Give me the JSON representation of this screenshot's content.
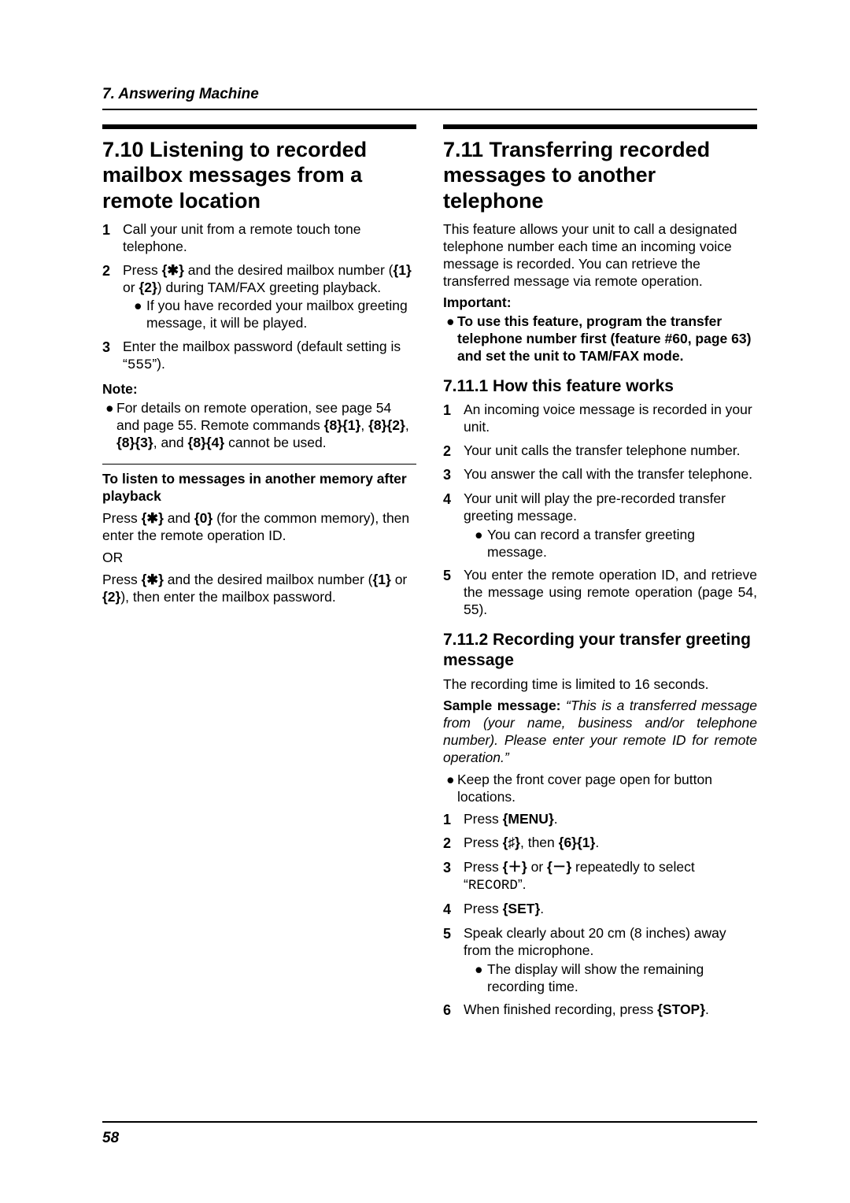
{
  "header": {
    "chapter": "7. Answering Machine"
  },
  "left": {
    "title": "7.10 Listening to recorded mailbox messages from a remote location",
    "steps": [
      {
        "n": "1",
        "t": "Call your unit from a remote touch tone telephone."
      },
      {
        "n": "2",
        "t": "Press {✱} and the desired mailbox number ({1} or {2}) during TAM/FAX greeting playback.",
        "sub": "If you have recorded your mailbox greeting message, it will be played."
      },
      {
        "n": "3",
        "t_pre": "Enter the mailbox password (default setting is “",
        "code": "555",
        "t_post": "”)."
      }
    ],
    "note_label": "Note:",
    "note": "For details on remote operation, see page 54 and page 55. Remote commands {8}{1}, {8}{2}, {8}{3}, and {8}{4} cannot be used.",
    "sub_head": "To listen to messages in another memory after playback",
    "p1": "Press {✱} and {0} (for the common memory), then enter the remote operation ID.",
    "or": "OR",
    "p2": "Press {✱} and the desired mailbox number ({1} or {2}), then enter the mailbox password."
  },
  "right": {
    "title": "7.11 Transferring recorded messages to another telephone",
    "intro": "This feature allows your unit to call a designated telephone number each time an incoming voice message is recorded. You can retrieve the transferred message via remote operation.",
    "imp_label": "Important:",
    "imp": "To use this feature, program the transfer telephone number first (feature #60, page 63) and set the unit to TAM/FAX mode.",
    "s1": {
      "title": "7.11.1 How this feature works",
      "steps": [
        {
          "n": "1",
          "t": "An incoming voice message is recorded in your unit."
        },
        {
          "n": "2",
          "t": "Your unit calls the transfer telephone number."
        },
        {
          "n": "3",
          "t": "You answer the call with the transfer telephone."
        },
        {
          "n": "4",
          "t": "Your unit will play the pre-recorded transfer greeting message.",
          "sub": "You can record a transfer greeting message."
        },
        {
          "n": "5",
          "t": "You enter the remote operation ID, and retrieve the message using remote operation (page 54, 55)."
        }
      ]
    },
    "s2": {
      "title": "7.11.2 Recording your transfer greeting message",
      "intro": "The recording time is limited to 16 seconds.",
      "sample_label": "Sample message:",
      "sample": " “This is a transferred message from (your name, business and/or telephone number). Please enter your remote ID for remote operation.”",
      "bullet": "Keep the front cover page open for button locations.",
      "steps": [
        {
          "n": "1",
          "t": "Press {MENU}."
        },
        {
          "n": "2",
          "t": "Press {♯}, then {6}{1}."
        },
        {
          "n": "3",
          "t_pre": "Press {＋} or {－} repeatedly to select “",
          "code": "RECORD",
          "t_post": "”."
        },
        {
          "n": "4",
          "t": "Press {SET}."
        },
        {
          "n": "5",
          "t": "Speak clearly about 20 cm (8 inches) away from the microphone.",
          "sub": "The display will show the remaining recording time."
        },
        {
          "n": "6",
          "t": "When finished recording, press {STOP}."
        }
      ]
    }
  },
  "footer": {
    "page": "58"
  }
}
